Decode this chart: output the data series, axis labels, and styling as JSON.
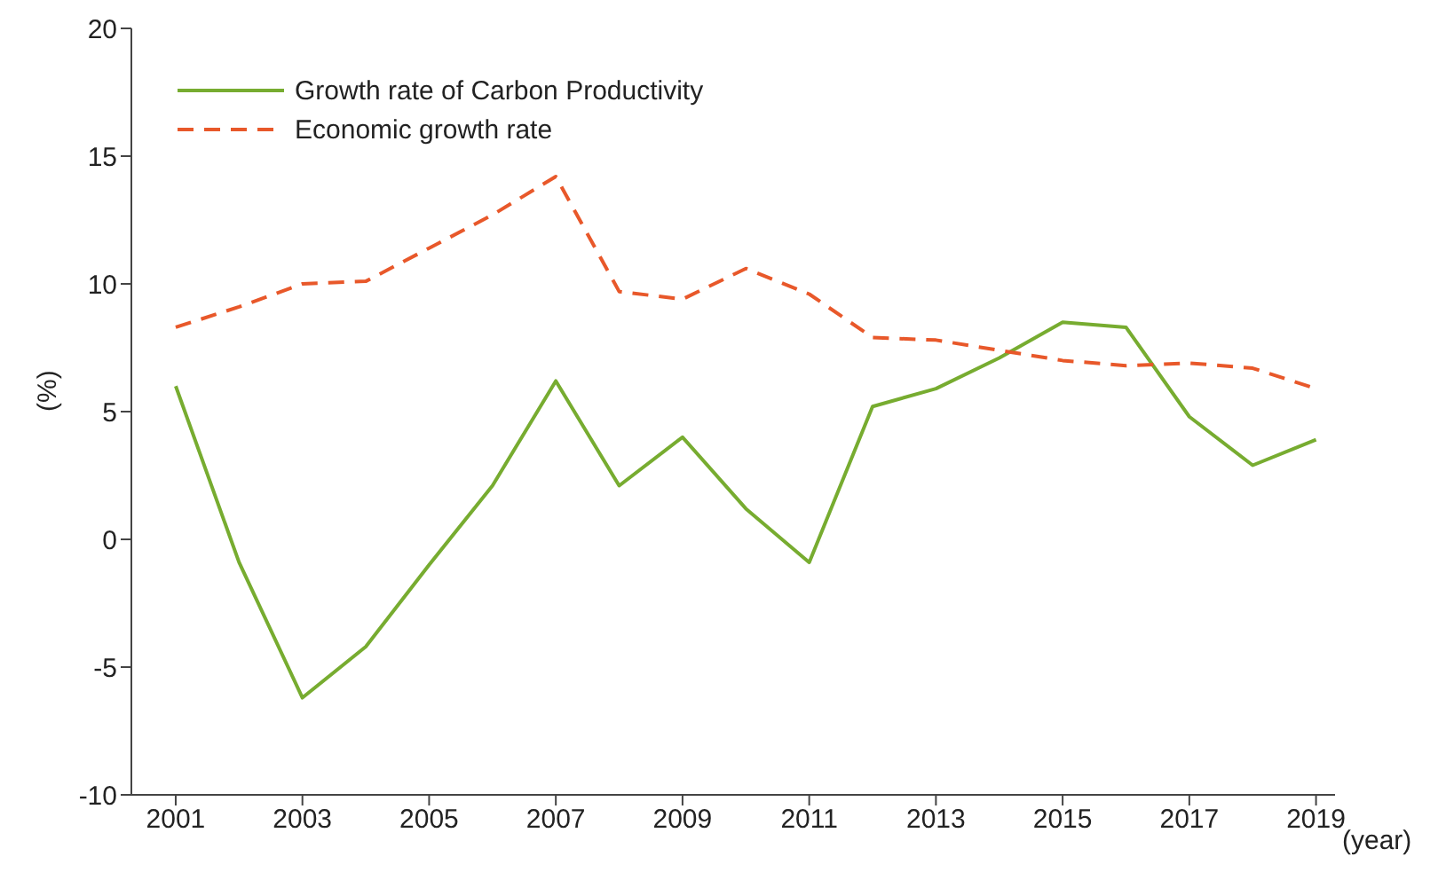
{
  "chart_data": {
    "type": "line",
    "xlabel": "(year)",
    "ylabel": "(%)",
    "x": [
      2001,
      2002,
      2003,
      2004,
      2005,
      2006,
      2007,
      2008,
      2009,
      2010,
      2011,
      2012,
      2013,
      2014,
      2015,
      2016,
      2017,
      2018,
      2019
    ],
    "series": [
      {
        "name": "Growth rate of Carbon Productivity",
        "color": "#77ac30",
        "line_style": "solid",
        "values": [
          6.0,
          -0.9,
          -6.2,
          -4.2,
          -1.0,
          2.1,
          6.2,
          2.1,
          4.0,
          1.2,
          -0.9,
          5.2,
          5.9,
          7.1,
          8.5,
          8.3,
          4.8,
          2.9,
          3.9
        ]
      },
      {
        "name": "Economic growth rate",
        "color": "#e8582a",
        "line_style": "dashed",
        "values": [
          8.3,
          9.1,
          10.0,
          10.1,
          11.4,
          12.7,
          14.2,
          9.7,
          9.4,
          10.6,
          9.6,
          7.9,
          7.8,
          7.4,
          7.0,
          6.8,
          6.9,
          6.7,
          5.9
        ]
      }
    ],
    "xlim": [
      2000.3,
      2019.3
    ],
    "xticks": [
      2001,
      2003,
      2005,
      2007,
      2009,
      2011,
      2013,
      2015,
      2017,
      2019
    ],
    "ylim": [
      -10,
      20
    ],
    "yticks": [
      -10,
      -5,
      0,
      5,
      10,
      15,
      20
    ],
    "grid": false,
    "legend": "top left",
    "marker": "none"
  }
}
